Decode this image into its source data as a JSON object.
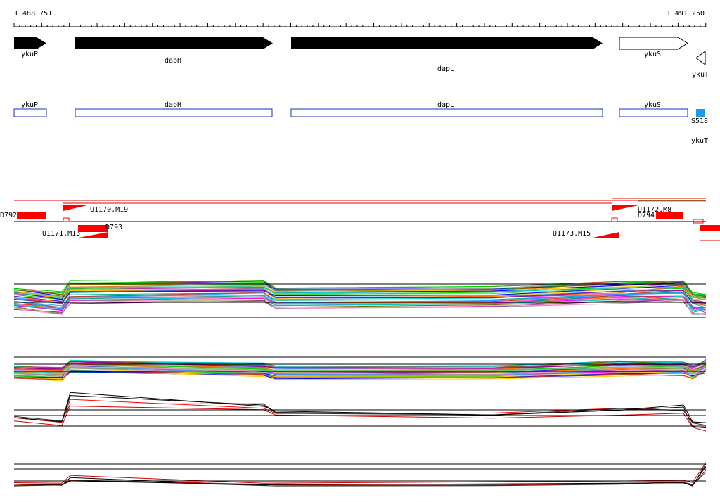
{
  "ruler": {
    "start": "1 488 751",
    "end": "1 491 250"
  },
  "genes": [
    {
      "label": "ykuP"
    },
    {
      "label": "dapH"
    },
    {
      "label": "dapL"
    },
    {
      "label": "ykuS"
    },
    {
      "label": "ykuT"
    }
  ],
  "gene_models": [
    {
      "label": "ykuP"
    },
    {
      "label": "dapH"
    },
    {
      "label": "dapL"
    },
    {
      "label": "ykuS"
    },
    {
      "label": "S518"
    },
    {
      "label": "ykuT"
    }
  ],
  "segments": [
    {
      "label": "D792"
    },
    {
      "label": "U1170.M19"
    },
    {
      "label": "U1171.M13"
    },
    {
      "label": "D793"
    },
    {
      "label": "U1172.M8"
    },
    {
      "label": "D794"
    },
    {
      "label": "U1173.M15"
    }
  ]
}
